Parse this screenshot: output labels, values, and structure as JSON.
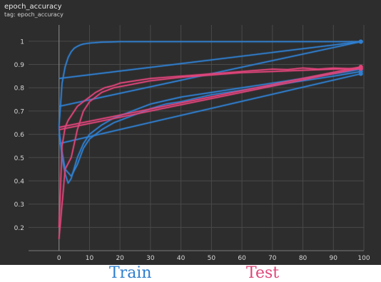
{
  "header": {
    "title": "epoch_accuracy",
    "tag": "tag: epoch_accuracy"
  },
  "legend": {
    "train": "Train",
    "test": "Test"
  },
  "colors": {
    "background": "#2d2d2d",
    "grid": "#4a4a4a",
    "axis_text": "#d8d8d8",
    "train": "#2f7fd0",
    "test": "#e0457a"
  },
  "chart_data": {
    "type": "line",
    "title": "epoch_accuracy",
    "xlabel": "",
    "ylabel": "",
    "xlim": [
      -10,
      100
    ],
    "ylim": [
      0.1,
      1.07
    ],
    "xticks": [
      0,
      10,
      20,
      30,
      40,
      50,
      60,
      70,
      80,
      90,
      100
    ],
    "yticks": [
      0.2,
      0.3,
      0.4,
      0.5,
      0.6,
      0.7,
      0.8,
      0.9,
      1
    ],
    "grid": true,
    "series": [
      {
        "name": "Train",
        "color": "#2f7fd0",
        "x": [
          0,
          1,
          2,
          3,
          4,
          5,
          6,
          7,
          8,
          10,
          12,
          14,
          17,
          20,
          99
        ],
        "y": [
          0.63,
          0.82,
          0.89,
          0.93,
          0.955,
          0.97,
          0.978,
          0.984,
          0.988,
          0.992,
          0.994,
          0.996,
          0.997,
          0.998,
          0.998
        ]
      },
      {
        "name": "",
        "color": "#2f7fd0",
        "x": [
          0,
          1,
          2,
          3,
          4,
          6,
          8,
          10,
          14,
          18,
          22,
          26,
          30,
          35,
          40,
          45,
          50,
          55,
          60,
          65,
          70,
          75,
          80,
          85,
          90,
          95,
          99
        ],
        "y": [
          0.63,
          0.5,
          0.43,
          0.39,
          0.41,
          0.5,
          0.56,
          0.6,
          0.64,
          0.67,
          0.69,
          0.71,
          0.73,
          0.745,
          0.76,
          0.77,
          0.78,
          0.79,
          0.8,
          0.81,
          0.82,
          0.83,
          0.84,
          0.85,
          0.86,
          0.87,
          0.88
        ]
      },
      {
        "name": "",
        "color": "#2f7fd0",
        "x": [
          0,
          2,
          4,
          6,
          8,
          10,
          14,
          18,
          22,
          26,
          30,
          35,
          40,
          45,
          50,
          55,
          60,
          70,
          80,
          90,
          99
        ],
        "y": [
          0.6,
          0.45,
          0.42,
          0.47,
          0.54,
          0.58,
          0.62,
          0.65,
          0.67,
          0.69,
          0.71,
          0.73,
          0.74,
          0.755,
          0.77,
          0.78,
          0.79,
          0.81,
          0.83,
          0.85,
          0.87
        ]
      },
      {
        "name": "",
        "color": "#2f7fd0",
        "x": [
          0,
          99
        ],
        "y": [
          0.84,
          0.998
        ]
      },
      {
        "name": "",
        "color": "#2f7fd0",
        "x": [
          0,
          99
        ],
        "y": [
          0.72,
          0.998
        ]
      },
      {
        "name": "",
        "color": "#2f7fd0",
        "x": [
          0,
          99
        ],
        "y": [
          0.56,
          0.86
        ]
      },
      {
        "name": "Test",
        "color": "#e0457a",
        "x": [
          0,
          1,
          2,
          3,
          4,
          6,
          8,
          10,
          12,
          15,
          18,
          20,
          25,
          30,
          35,
          40,
          45,
          50,
          55,
          60,
          65,
          70,
          75,
          80,
          85,
          90,
          95,
          99
        ],
        "y": [
          0.2,
          0.55,
          0.63,
          0.66,
          0.68,
          0.72,
          0.74,
          0.76,
          0.78,
          0.8,
          0.81,
          0.82,
          0.83,
          0.84,
          0.845,
          0.85,
          0.855,
          0.86,
          0.865,
          0.87,
          0.875,
          0.88,
          0.878,
          0.885,
          0.88,
          0.885,
          0.882,
          0.883
        ]
      },
      {
        "name": "",
        "color": "#e0457a",
        "x": [
          0,
          2,
          4,
          6,
          8,
          10,
          14,
          18,
          22,
          26,
          30,
          40,
          50,
          60,
          70,
          80,
          90,
          99
        ],
        "y": [
          0.15,
          0.45,
          0.5,
          0.62,
          0.7,
          0.74,
          0.78,
          0.8,
          0.81,
          0.82,
          0.83,
          0.845,
          0.855,
          0.865,
          0.87,
          0.875,
          0.88,
          0.882
        ]
      },
      {
        "name": "",
        "color": "#e0457a",
        "x": [
          0,
          99
        ],
        "y": [
          0.62,
          0.885
        ]
      },
      {
        "name": "",
        "color": "#e0457a",
        "x": [
          0,
          99
        ],
        "y": [
          0.63,
          0.89
        ]
      }
    ]
  }
}
